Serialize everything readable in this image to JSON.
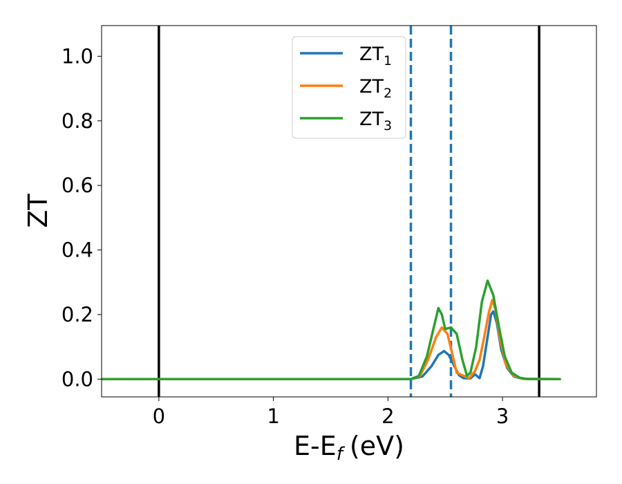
{
  "chart_data": {
    "type": "line",
    "title": "",
    "xlabel": "E-E",
    "xlabel_sub": "f",
    "xlabel_unit": "(eV)",
    "ylabel": "ZT",
    "xlim": [
      -0.5,
      3.82
    ],
    "ylim": [
      -0.055,
      1.095
    ],
    "grid": false,
    "legend_position": "top-center",
    "xticks": [
      0,
      1,
      2,
      3
    ],
    "yticks": [
      0.0,
      0.2,
      0.4,
      0.6,
      0.8,
      1.0
    ],
    "xtick_labels": [
      "0",
      "1",
      "2",
      "3"
    ],
    "ytick_labels": [
      "0.0",
      "0.2",
      "0.4",
      "0.6",
      "0.8",
      "1.0"
    ],
    "vlines": [
      {
        "x": 0.0,
        "style": "solid",
        "color": "#000000"
      },
      {
        "x": 3.32,
        "style": "solid",
        "color": "#000000"
      },
      {
        "x": 2.2,
        "style": "dashed",
        "color": "#1f77b4"
      },
      {
        "x": 2.55,
        "style": "dashed",
        "color": "#1f77b4"
      }
    ],
    "series": [
      {
        "name": "ZT",
        "sub": "1",
        "color": "#1f77b4",
        "points": [
          [
            -0.5,
            0
          ],
          [
            2.2,
            0
          ],
          [
            2.3,
            0.008
          ],
          [
            2.38,
            0.04
          ],
          [
            2.44,
            0.075
          ],
          [
            2.49,
            0.087
          ],
          [
            2.53,
            0.075
          ],
          [
            2.58,
            0.04
          ],
          [
            2.62,
            0.012
          ],
          [
            2.66,
            0.003
          ],
          [
            2.72,
            0.002
          ],
          [
            2.76,
            0.015
          ],
          [
            2.8,
            0.003
          ],
          [
            2.83,
            0.04
          ],
          [
            2.87,
            0.13
          ],
          [
            2.9,
            0.2
          ],
          [
            2.92,
            0.21
          ],
          [
            2.95,
            0.175
          ],
          [
            2.99,
            0.09
          ],
          [
            3.04,
            0.035
          ],
          [
            3.1,
            0.008
          ],
          [
            3.18,
            0.001
          ],
          [
            3.5,
            0
          ]
        ]
      },
      {
        "name": "ZT",
        "sub": "2",
        "color": "#ff7f0e",
        "points": [
          [
            -0.5,
            0
          ],
          [
            2.2,
            0
          ],
          [
            2.28,
            0.01
          ],
          [
            2.35,
            0.06
          ],
          [
            2.42,
            0.13
          ],
          [
            2.47,
            0.16
          ],
          [
            2.52,
            0.14
          ],
          [
            2.56,
            0.08
          ],
          [
            2.6,
            0.02
          ],
          [
            2.65,
            0.012
          ],
          [
            2.71,
            0.003
          ],
          [
            2.76,
            0.025
          ],
          [
            2.8,
            0.06
          ],
          [
            2.84,
            0.13
          ],
          [
            2.88,
            0.205
          ],
          [
            2.91,
            0.245
          ],
          [
            2.94,
            0.215
          ],
          [
            2.98,
            0.12
          ],
          [
            3.03,
            0.045
          ],
          [
            3.1,
            0.01
          ],
          [
            3.18,
            0.001
          ],
          [
            3.5,
            0
          ]
        ]
      },
      {
        "name": "ZT",
        "sub": "3",
        "color": "#2ca02c",
        "points": [
          [
            -0.5,
            0
          ],
          [
            2.2,
            0
          ],
          [
            2.27,
            0.01
          ],
          [
            2.34,
            0.07
          ],
          [
            2.4,
            0.16
          ],
          [
            2.44,
            0.22
          ],
          [
            2.47,
            0.2
          ],
          [
            2.5,
            0.155
          ],
          [
            2.55,
            0.16
          ],
          [
            2.6,
            0.14
          ],
          [
            2.65,
            0.06
          ],
          [
            2.69,
            0.01
          ],
          [
            2.72,
            0.02
          ],
          [
            2.77,
            0.1
          ],
          [
            2.82,
            0.24
          ],
          [
            2.87,
            0.305
          ],
          [
            2.92,
            0.26
          ],
          [
            2.97,
            0.16
          ],
          [
            3.02,
            0.07
          ],
          [
            3.08,
            0.02
          ],
          [
            3.15,
            0.004
          ],
          [
            3.22,
            0
          ],
          [
            3.5,
            0
          ]
        ]
      }
    ]
  }
}
